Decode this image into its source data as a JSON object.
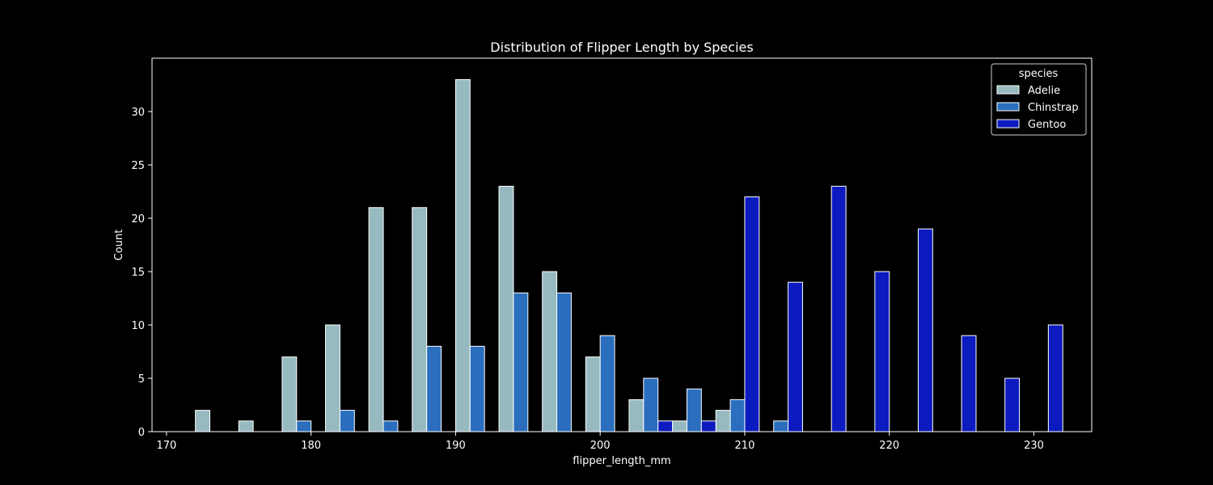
{
  "chart_data": {
    "type": "bar",
    "title": "Distribution of Flipper Length by Species",
    "xlabel": "flipper_length_mm",
    "ylabel": "Count",
    "xlim": [
      169,
      234
    ],
    "ylim": [
      0,
      35
    ],
    "xticks": [
      170,
      180,
      190,
      200,
      210,
      220,
      230
    ],
    "yticks": [
      0,
      5,
      10,
      15,
      20,
      25,
      30
    ],
    "bin_edges": [
      172,
      175,
      178,
      181,
      184,
      187,
      190,
      193,
      196,
      199,
      202,
      205,
      208,
      211,
      214,
      217,
      220,
      223,
      226,
      229,
      232
    ],
    "grid": false,
    "legend": {
      "title": "species",
      "position": "top-right"
    },
    "series": [
      {
        "name": "Adelie",
        "color": "#96BAC0",
        "values": [
          2,
          1,
          7,
          10,
          21,
          21,
          33,
          23,
          15,
          7,
          3,
          1,
          2,
          0,
          0,
          0,
          0,
          0,
          0,
          0
        ]
      },
      {
        "name": "Chinstrap",
        "color": "#2A6EBD",
        "values": [
          0,
          0,
          1,
          2,
          1,
          8,
          8,
          13,
          13,
          9,
          5,
          4,
          3,
          1,
          0,
          0,
          0,
          0,
          0,
          0
        ]
      },
      {
        "name": "Gentoo",
        "color": "#0C1BBF",
        "values": [
          0,
          0,
          0,
          0,
          0,
          0,
          0,
          0,
          0,
          0,
          1,
          1,
          22,
          14,
          23,
          15,
          19,
          9,
          5,
          10
        ]
      }
    ]
  }
}
